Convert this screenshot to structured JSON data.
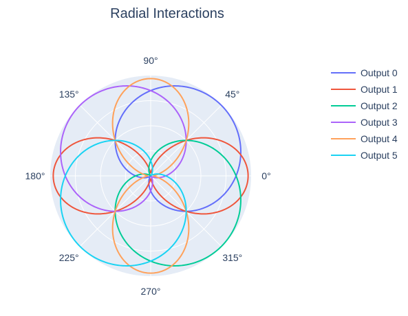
{
  "chart_data": {
    "type": "line",
    "subtype": "polar",
    "title": "Radial Interactions",
    "angular_axis": {
      "unit": "degrees",
      "direction": "counterclockwise",
      "rotation": 0,
      "ticks": [
        0,
        45,
        90,
        135,
        180,
        225,
        270,
        315
      ],
      "tick_labels": [
        "0°",
        "45°",
        "90°",
        "135°",
        "180°",
        "225°",
        "270°",
        "315°"
      ]
    },
    "radial_axis": {
      "range": [
        0,
        2.0
      ],
      "tick_labels_visible": false
    },
    "grid": true,
    "legend_position": "top-right",
    "series": [
      {
        "name": "Output 0",
        "color": "#636efa",
        "formula": "1 + 0.7*cos(theta) + 0.7*sin(theta)"
      },
      {
        "name": "Output 1",
        "color": "#EF553B",
        "formula": "1 + 0.94*cos(2*theta)"
      },
      {
        "name": "Output 2",
        "color": "#00cc96",
        "formula": "1 + 0.7*cos(theta) - 0.7*sin(theta)"
      },
      {
        "name": "Output 3",
        "color": "#ab63fa",
        "formula": "1 - 0.7*cos(theta) + 0.7*sin(theta)"
      },
      {
        "name": "Output 4",
        "color": "#FFA15A",
        "formula": "1 - 0.94*cos(2*theta)"
      },
      {
        "name": "Output 5",
        "color": "#19d3f3",
        "formula": "1 - 0.7*cos(theta) - 0.7*sin(theta)"
      }
    ]
  }
}
